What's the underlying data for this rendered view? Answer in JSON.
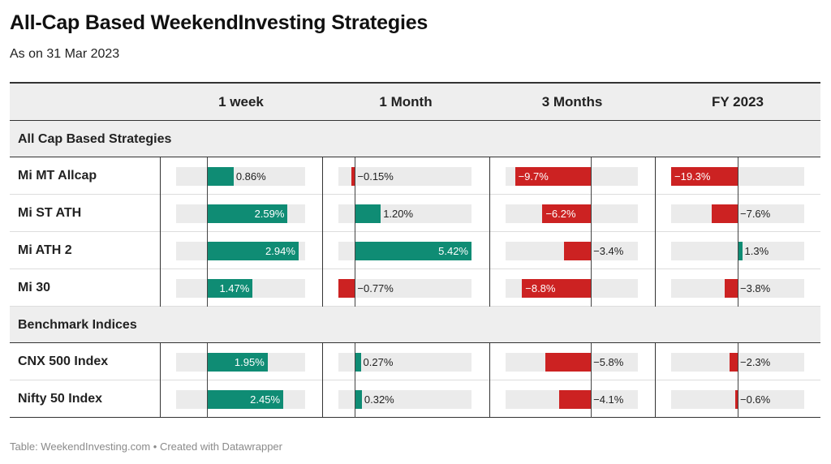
{
  "title": "All-Cap Based WeekendInvesting Strategies",
  "subtitle": "As on 31 Mar 2023",
  "footer": "Table: WeekendInvesting.com • Created with Datawrapper",
  "colors": {
    "positive": "#0f8c74",
    "negative": "#cc2222",
    "track": "#ebebeb"
  },
  "chart_data": {
    "type": "table",
    "columns": [
      "1 week",
      "1 Month",
      "3 Months",
      "FY 2023"
    ],
    "groups": [
      {
        "label": "All Cap Based Strategies",
        "rows": [
          {
            "name": "Mi MT Allcap",
            "values": [
              0.86,
              -0.15,
              -9.7,
              -19.3
            ],
            "labels": [
              "0.86%",
              "−0.15%",
              "−9.7%",
              "−19.3%"
            ]
          },
          {
            "name": "Mi ST ATH",
            "values": [
              2.59,
              1.2,
              -6.2,
              -7.6
            ],
            "labels": [
              "2.59%",
              "1.20%",
              "−6.2%",
              "−7.6%"
            ]
          },
          {
            "name": "Mi ATH 2",
            "values": [
              2.94,
              5.42,
              -3.4,
              1.3
            ],
            "labels": [
              "2.94%",
              "5.42%",
              "−3.4%",
              "1.3%"
            ]
          },
          {
            "name": "Mi 30",
            "values": [
              1.47,
              -0.77,
              -8.8,
              -3.8
            ],
            "labels": [
              "1.47%",
              "−0.77%",
              "−8.8%",
              "−3.8%"
            ]
          }
        ]
      },
      {
        "label": "Benchmark Indices",
        "rows": [
          {
            "name": "CNX 500 Index",
            "values": [
              1.95,
              0.27,
              -5.8,
              -2.3
            ],
            "labels": [
              "1.95%",
              "0.27%",
              "−5.8%",
              "−2.3%"
            ]
          },
          {
            "name": "Nifty 50 Index",
            "values": [
              2.45,
              0.32,
              -4.1,
              -0.6
            ],
            "labels": [
              "2.45%",
              "0.32%",
              "−4.1%",
              "−0.6%"
            ]
          }
        ]
      }
    ],
    "column_ranges": [
      [
        -0.98,
        3.15
      ],
      [
        -0.77,
        5.42
      ],
      [
        -10.9,
        6.0
      ],
      [
        -19.3,
        19.3
      ]
    ]
  }
}
